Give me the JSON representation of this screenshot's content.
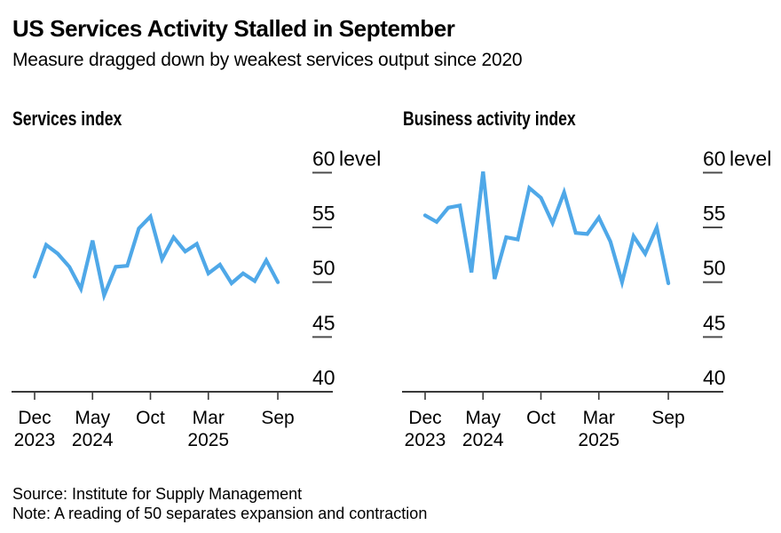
{
  "header": {
    "title": "US Services Activity Stalled in September",
    "subtitle": "Measure dragged down by weakest services output since 2020"
  },
  "footer": {
    "source": "Source: Institute for Supply Management",
    "note": "Note: A reading of 50 separates expansion and contraction"
  },
  "colors": {
    "line": "#4fa8e8",
    "axis": "#3a3a3a",
    "tick_dash": "#4d4d4d",
    "text": "#000000",
    "background": "#ffffff"
  },
  "chart_data": [
    {
      "type": "line",
      "title": "Services index",
      "y_unit_label": "level",
      "grid": false,
      "legend": "none",
      "line_color": "#4fa8e8",
      "ylim": [
        40,
        61
      ],
      "yticks": [
        40,
        45,
        50,
        55,
        60
      ],
      "x": [
        "Dec 2023",
        "Jan 2024",
        "Feb 2024",
        "Mar 2024",
        "Apr 2024",
        "May 2024",
        "Jun 2024",
        "Jul 2024",
        "Aug 2024",
        "Sep 2024",
        "Oct 2024",
        "Nov 2024",
        "Dec 2024",
        "Jan 2025",
        "Feb 2025",
        "Mar 2025",
        "Apr 2025",
        "May 2025",
        "Jun 2025",
        "Jul 2025",
        "Aug 2025",
        "Sep 2025"
      ],
      "values": [
        50.5,
        53.4,
        52.6,
        51.4,
        49.4,
        53.8,
        48.8,
        51.4,
        51.5,
        54.9,
        56.0,
        52.1,
        54.1,
        52.8,
        53.5,
        50.8,
        51.6,
        49.9,
        50.8,
        50.1,
        52.0,
        50.0
      ],
      "x_tick_labels": [
        {
          "index": 0,
          "month": "Dec",
          "year": "2023"
        },
        {
          "index": 5,
          "month": "May",
          "year": "2024"
        },
        {
          "index": 10,
          "month": "Oct",
          "year": ""
        },
        {
          "index": 15,
          "month": "Mar",
          "year": "2025"
        },
        {
          "index": 21,
          "month": "Sep",
          "year": ""
        }
      ]
    },
    {
      "type": "line",
      "title": "Business activity index",
      "y_unit_label": "level",
      "grid": false,
      "legend": "none",
      "line_color": "#4fa8e8",
      "ylim": [
        40,
        61
      ],
      "yticks": [
        40,
        45,
        50,
        55,
        60
      ],
      "x": [
        "Dec 2023",
        "Jan 2024",
        "Feb 2024",
        "Mar 2024",
        "Apr 2024",
        "May 2024",
        "Jun 2024",
        "Jul 2024",
        "Aug 2024",
        "Sep 2024",
        "Oct 2024",
        "Nov 2024",
        "Dec 2024",
        "Jan 2025",
        "Feb 2025",
        "Mar 2025",
        "Apr 2025",
        "May 2025",
        "Jun 2025",
        "Jul 2025",
        "Aug 2025",
        "Sep 2025"
      ],
      "values": [
        56.1,
        55.5,
        56.8,
        57.0,
        50.9,
        60.1,
        50.3,
        54.1,
        53.9,
        58.6,
        57.7,
        55.4,
        58.2,
        54.5,
        54.4,
        55.9,
        53.7,
        50.0,
        54.2,
        52.6,
        55.0,
        49.9
      ],
      "x_tick_labels": [
        {
          "index": 0,
          "month": "Dec",
          "year": "2023"
        },
        {
          "index": 5,
          "month": "May",
          "year": "2024"
        },
        {
          "index": 10,
          "month": "Oct",
          "year": ""
        },
        {
          "index": 15,
          "month": "Mar",
          "year": "2025"
        },
        {
          "index": 21,
          "month": "Sep",
          "year": ""
        }
      ]
    }
  ]
}
